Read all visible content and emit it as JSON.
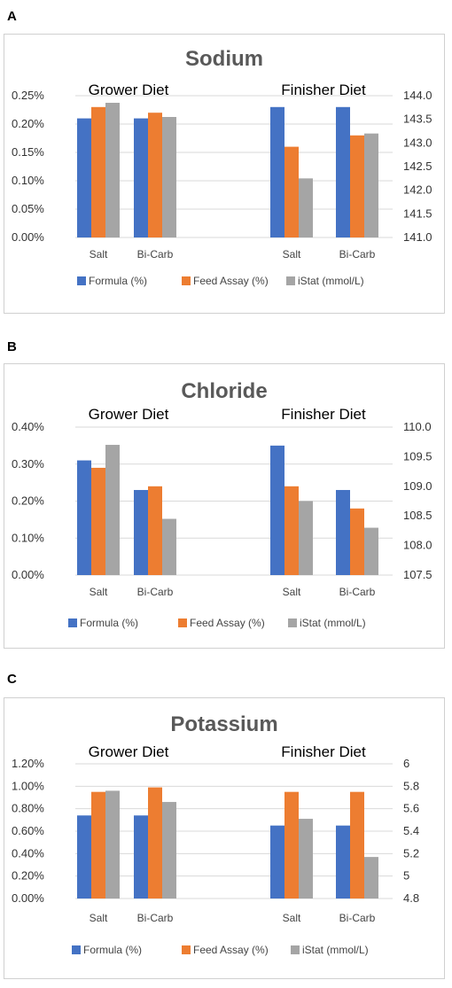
{
  "colors": {
    "formula": "#4472C4",
    "feed_assay": "#ED7D31",
    "istat": "#A5A5A5",
    "grid": "#D9D9D9"
  },
  "chart_data": [
    {
      "panel": "A",
      "type": "bar",
      "title": "Sodium",
      "groups": [
        "Grower Diet",
        "Finisher Diet"
      ],
      "categories": [
        "Salt",
        "Bi-Carb",
        "Salt",
        "Bi-Carb"
      ],
      "series": [
        {
          "name": "Formula (%)",
          "axis": "left",
          "values": [
            0.0021,
            0.0021,
            0.0023,
            0.0023
          ]
        },
        {
          "name": "Feed Assay (%)",
          "axis": "left",
          "values": [
            0.0023,
            0.0022,
            0.0016,
            0.0018
          ]
        },
        {
          "name": "iStat (mmol/L)",
          "axis": "right",
          "values": [
            143.85,
            143.55,
            142.25,
            143.2
          ]
        }
      ],
      "y_left": {
        "ticks": [
          "0.25%",
          "0.20%",
          "0.15%",
          "0.10%",
          "0.05%",
          "0.00%"
        ],
        "min": 0,
        "max": 0.0025
      },
      "y_right": {
        "ticks": [
          "144.0",
          "143.5",
          "143.0",
          "142.5",
          "142.0",
          "141.5",
          "141.0"
        ],
        "min": 141.0,
        "max": 144.0
      },
      "legend_position": "bottom"
    },
    {
      "panel": "B",
      "type": "bar",
      "title": "Chloride",
      "groups": [
        "Grower Diet",
        "Finisher Diet"
      ],
      "categories": [
        "Salt",
        "Bi-Carb",
        "Salt",
        "Bi-Carb"
      ],
      "series": [
        {
          "name": "Formula (%)",
          "axis": "left",
          "values": [
            0.0031,
            0.0023,
            0.0035,
            0.0023
          ]
        },
        {
          "name": "Feed Assay (%)",
          "axis": "left",
          "values": [
            0.0029,
            0.0024,
            0.0024,
            0.0018
          ]
        },
        {
          "name": "iStat (mmol/L)",
          "axis": "right",
          "values": [
            109.7,
            108.45,
            108.75,
            108.3
          ]
        }
      ],
      "y_left": {
        "ticks": [
          "0.40%",
          "0.30%",
          "0.20%",
          "0.10%",
          "0.00%"
        ],
        "min": 0,
        "max": 0.004
      },
      "y_right": {
        "ticks": [
          "110.0",
          "109.5",
          "109.0",
          "108.5",
          "108.0",
          "107.5"
        ],
        "min": 107.5,
        "max": 110.0
      },
      "legend_position": "bottom"
    },
    {
      "panel": "C",
      "type": "bar",
      "title": "Potassium",
      "groups": [
        "Grower Diet",
        "Finisher Diet"
      ],
      "categories": [
        "Salt",
        "Bi-Carb",
        "Salt",
        "Bi-Carb"
      ],
      "series": [
        {
          "name": "Formula (%)",
          "axis": "left",
          "values": [
            0.0074,
            0.0074,
            0.0065,
            0.0065
          ]
        },
        {
          "name": "Feed Assay (%)",
          "axis": "left",
          "values": [
            0.0095,
            0.0099,
            0.0095,
            0.0095
          ]
        },
        {
          "name": "iStat (mmol/L)",
          "axis": "right",
          "values": [
            5.76,
            5.66,
            5.51,
            5.17
          ]
        }
      ],
      "y_left": {
        "ticks": [
          "1.20%",
          "1.00%",
          "0.80%",
          "0.60%",
          "0.40%",
          "0.20%",
          "0.00%"
        ],
        "min": 0,
        "max": 0.012
      },
      "y_right": {
        "ticks": [
          "6",
          "5.8",
          "5.6",
          "5.4",
          "5.2",
          "5",
          "4.8"
        ],
        "min": 4.8,
        "max": 6.0
      },
      "legend_position": "bottom"
    }
  ]
}
